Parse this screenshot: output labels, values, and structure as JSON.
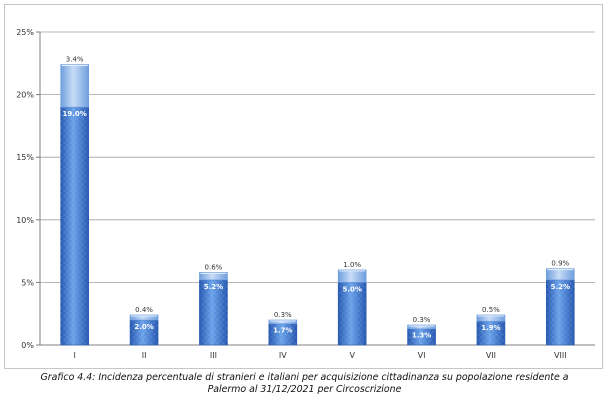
{
  "caption": {
    "line1": "Grafico 4.4: Incidenza percentuale di stranieri e italiani per acquisizione cittadinanza su popolazione residente a",
    "line2": "Palermo al 31/12/2021 per Circoscrizione"
  },
  "colors": {
    "base_dark": "#2557b0",
    "base_mid": "#4a86db",
    "base_light": "#6aa2ea",
    "top_dark": "#6f9ede",
    "top_mid": "#a7c8f2",
    "top_light": "#c8dcf7",
    "grid": "#a0a0a0",
    "axis": "#808080"
  },
  "chart_data": {
    "type": "bar",
    "stacked": true,
    "categories": [
      "I",
      "II",
      "III",
      "IV",
      "V",
      "VI",
      "VII",
      "VIII"
    ],
    "series": [
      {
        "values": [
          19.0,
          2.0,
          5.2,
          1.7,
          5.0,
          1.3,
          1.9,
          5.2
        ],
        "labels": [
          "19.0%",
          "2.0%",
          "5.2%",
          "1.7%",
          "5.0%",
          "1.3%",
          "1.9%",
          "5.2%"
        ]
      },
      {
        "values": [
          3.4,
          0.4,
          0.6,
          0.3,
          1.0,
          0.3,
          0.5,
          0.9
        ],
        "labels": [
          "3.4%",
          "0.4%",
          "0.6%",
          "0.3%",
          "1.0%",
          "0.3%",
          "0.5%",
          "0.9%"
        ]
      }
    ],
    "yticks": [
      "0%",
      "5%",
      "10%",
      "15%",
      "20%",
      "25%"
    ],
    "ylim": [
      0,
      25
    ],
    "grid": true,
    "legend": "none"
  }
}
